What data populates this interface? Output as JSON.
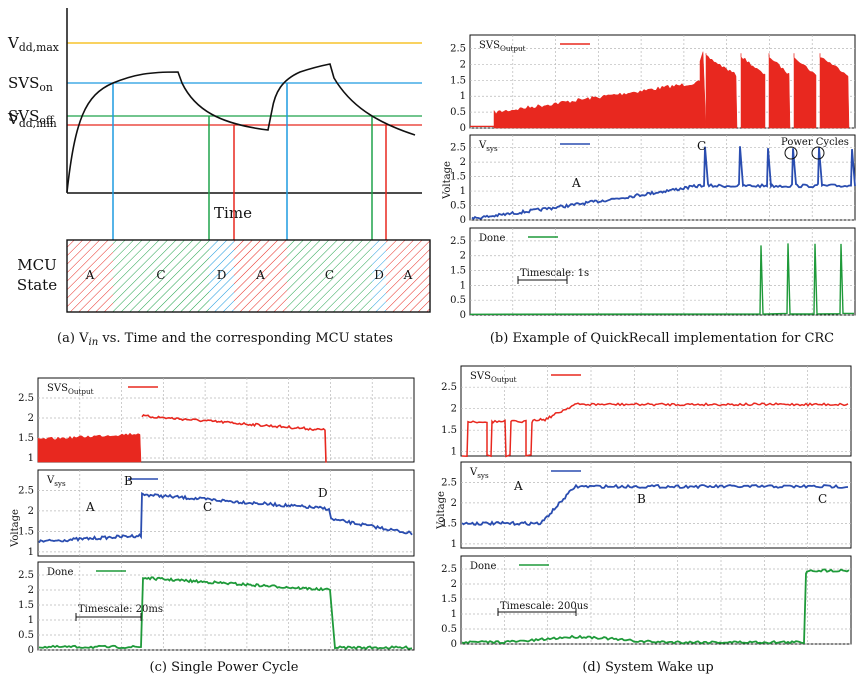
{
  "chart_data": [
    {
      "type": "line",
      "panel_id": "a",
      "caption": "(a) V",
      "caption_sub": "in",
      "caption_rest": " vs. Time and the corresponding MCU states",
      "xlabel": "Time",
      "levels": [
        {
          "name": "V",
          "sub": "dd,max",
          "color": "#f5b800"
        },
        {
          "name": "SVS",
          "sub": "on",
          "color": "#1e9be0"
        },
        {
          "name": "SVS",
          "sub": "off",
          "color": "#1fa24a"
        },
        {
          "name": "V",
          "sub": "dd,min",
          "color": "#e8281f"
        }
      ],
      "state_label_line1": "MCU",
      "state_label_line2": "State",
      "states": [
        "A",
        "C",
        "D",
        "A",
        "C",
        "D",
        "A"
      ],
      "state_colors": {
        "A": "#e8281f",
        "C": "#1fa24a",
        "D": "#1e9be0"
      }
    },
    {
      "type": "line",
      "panel_id": "b",
      "caption": "(b) Example of QuickRecall implementation for CRC",
      "ylabel": "Voltage",
      "timescale": "Timescale: 1s",
      "subplots": [
        {
          "series": "SVS",
          "series_sub": "Output",
          "color": "#e8281f",
          "yticks": [
            "0",
            "0.5",
            "1",
            "1.5",
            "2",
            "2.5"
          ],
          "annotations": []
        },
        {
          "series": "V",
          "series_sub": "sys",
          "color": "#2a4db0",
          "yticks": [
            "0",
            "0.5",
            "1",
            "1.5",
            "2",
            "2.5"
          ],
          "annotations": [
            "A",
            "C",
            "Power Cycles"
          ]
        },
        {
          "series": "Done",
          "series_sub": "",
          "color": "#1f9a3a",
          "yticks": [
            "0",
            "0.5",
            "1",
            "1.5",
            "2",
            "2.5"
          ],
          "annotations": []
        }
      ]
    },
    {
      "type": "line",
      "panel_id": "c",
      "caption": "(c) Single Power Cycle",
      "ylabel": "Voltage",
      "timescale": "Timescale: 20ms",
      "subplots": [
        {
          "series": "SVS",
          "series_sub": "Output",
          "color": "#e8281f",
          "yticks": [
            "1",
            "1.5",
            "2",
            "2.5"
          ],
          "annotations": []
        },
        {
          "series": "V",
          "series_sub": "sys",
          "color": "#2a4db0",
          "yticks": [
            "1",
            "1.5",
            "2",
            "2.5"
          ],
          "annotations": [
            "A",
            "B",
            "C",
            "D"
          ]
        },
        {
          "series": "Done",
          "series_sub": "",
          "color": "#1f9a3a",
          "yticks": [
            "0",
            "0.5",
            "1",
            "1.5",
            "2",
            "2.5"
          ],
          "annotations": []
        }
      ]
    },
    {
      "type": "line",
      "panel_id": "d",
      "caption": "(d) System Wake up",
      "ylabel": "Voltage",
      "timescale": "Timescale: 200us",
      "subplots": [
        {
          "series": "SVS",
          "series_sub": "Output",
          "color": "#e8281f",
          "yticks": [
            "1",
            "1.5",
            "2",
            "2.5"
          ],
          "annotations": []
        },
        {
          "series": "V",
          "series_sub": "sys",
          "color": "#2a4db0",
          "yticks": [
            "1",
            "1.5",
            "2",
            "2.5"
          ],
          "annotations": [
            "A",
            "B",
            "C"
          ]
        },
        {
          "series": "Done",
          "series_sub": "",
          "color": "#1f9a3a",
          "yticks": [
            "0",
            "0.5",
            "1",
            "1.5",
            "2",
            "2.5"
          ],
          "annotations": []
        }
      ]
    }
  ]
}
